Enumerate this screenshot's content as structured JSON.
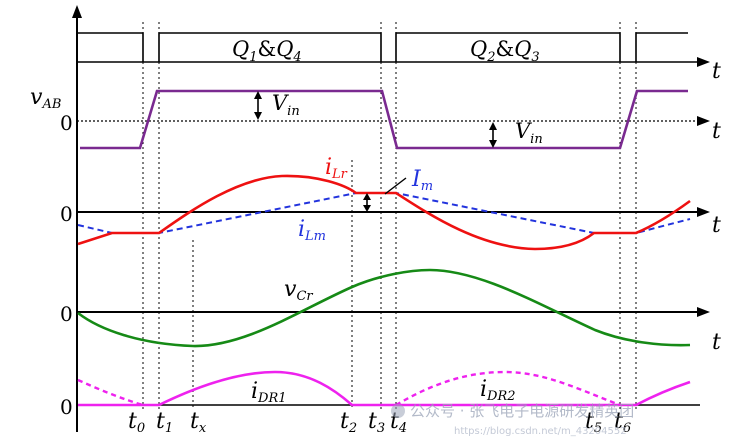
{
  "gate_labels": {
    "q14_main": "Q",
    "q14_sub1": "1",
    "q14_amp": "&",
    "q14_q": "Q",
    "q14_sub2": "4",
    "q23_main": "Q",
    "q23_sub1": "2",
    "q23_amp": "&",
    "q23_q": "Q",
    "q23_sub2": "3"
  },
  "axis_label": "t",
  "zero_label": "0",
  "vab": {
    "main": "v",
    "sub": "AB"
  },
  "vin": {
    "main": "V",
    "sub": "in"
  },
  "ilr": {
    "main": "i",
    "sub": "Lr"
  },
  "ilm": {
    "main": "i",
    "sub": "Lm"
  },
  "im": {
    "main": "I",
    "sub": "m"
  },
  "vcr": {
    "main": "v",
    "sub": "Cr"
  },
  "idr1": {
    "main": "i",
    "sub": "DR1"
  },
  "idr2": {
    "main": "i",
    "sub": "DR2"
  },
  "time_marks": [
    {
      "main": "t",
      "sub": "0"
    },
    {
      "main": "t",
      "sub": "1"
    },
    {
      "main": "t",
      "sub": "x"
    },
    {
      "main": "t",
      "sub": "2"
    },
    {
      "main": "t",
      "sub": "3"
    },
    {
      "main": "t",
      "sub": "4"
    },
    {
      "main": "t",
      "sub": "5"
    },
    {
      "main": "t",
      "sub": "6"
    }
  ],
  "watermark": "公众号 · 张飞电子电源研发精英团",
  "watermark_url": "https://blog.csdn.net/m_43204552",
  "colors": {
    "vab": "#7a2a90",
    "ilr": "#ee1111",
    "ilm": "#2233dd",
    "vcr": "#168a16",
    "idr": "#ee22ee"
  }
}
